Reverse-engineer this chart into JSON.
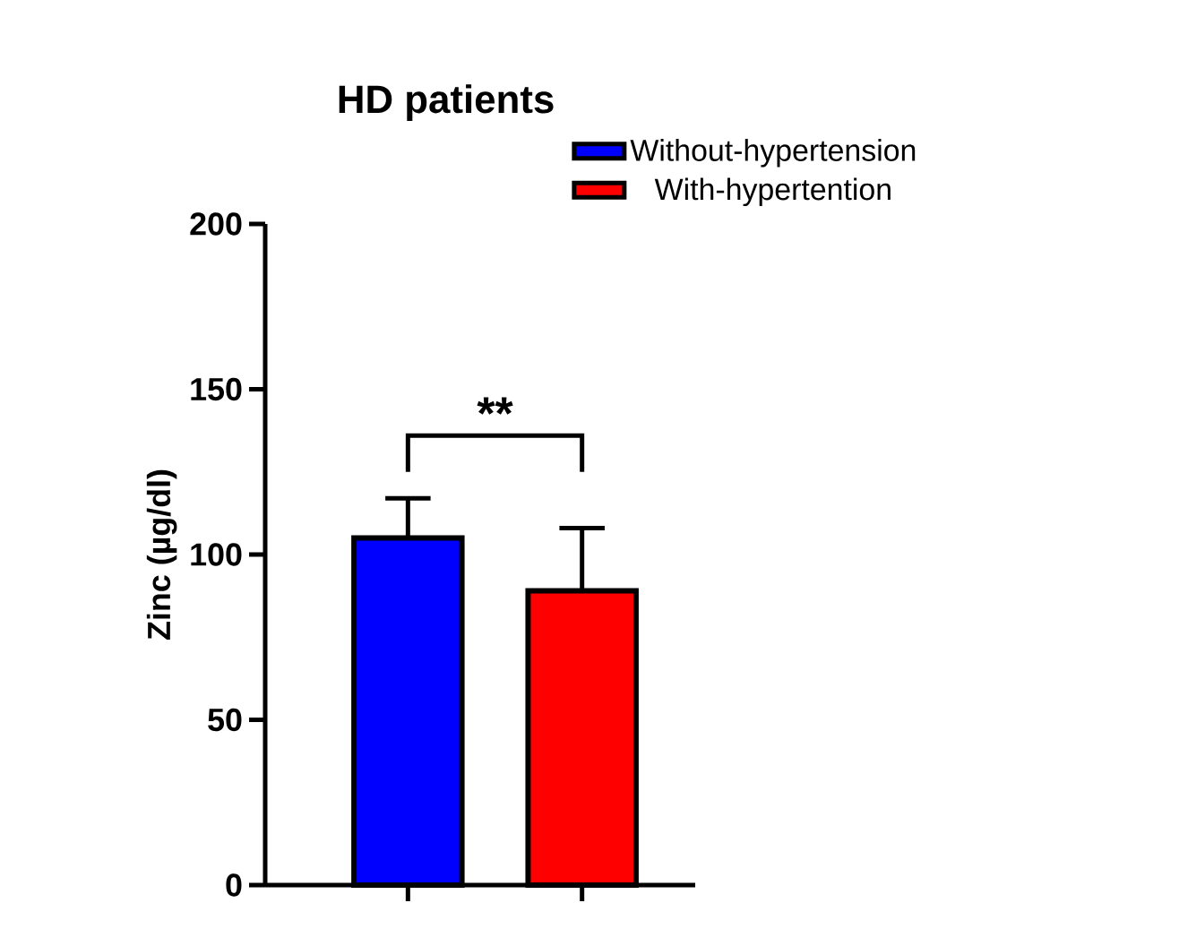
{
  "chart_data": {
    "type": "bar",
    "title": "HD patients",
    "ylabel": "Zinc (µg/dl)",
    "categories": [
      null,
      null
    ],
    "series": [
      {
        "name": "Without-hypertension",
        "color": "#0000ff",
        "values": [
          105,
          null
        ],
        "errors": [
          [
            105,
            117
          ],
          null
        ]
      },
      {
        "name": "With-hypertention",
        "color": "#ff0000",
        "values": [
          null,
          89
        ],
        "errors": [
          null,
          [
            89,
            108
          ]
        ]
      }
    ],
    "ylim": [
      0,
      200
    ],
    "yticks": [
      0,
      50,
      100,
      150,
      200
    ],
    "grid": false,
    "legend": "top right",
    "tick_labels": "y",
    "annotations": [
      "**"
    ]
  }
}
